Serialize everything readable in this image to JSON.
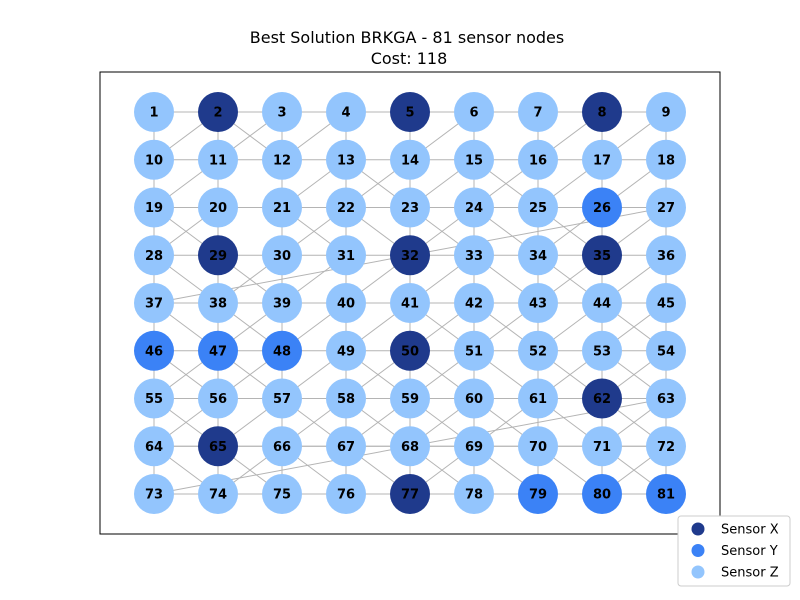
{
  "figure": {
    "title": "Best Solution BRKGA - 81 sensor nodes",
    "subtitle": "Cost: 118"
  },
  "colors": {
    "X": "#1f3a8c",
    "Y": "#3b82f6",
    "Z": "#93c5fd",
    "edge": "#b4b4b4",
    "frame": "#000000"
  },
  "legend": {
    "placement": "bottom-right",
    "items": [
      {
        "type": "X",
        "label": "Sensor X"
      },
      {
        "type": "Y",
        "label": "Sensor Y"
      },
      {
        "type": "Z",
        "label": "Sensor Z"
      }
    ]
  },
  "graph": {
    "rows": 9,
    "cols": 9,
    "nodes": [
      {
        "id": 1,
        "type": "Z"
      },
      {
        "id": 2,
        "type": "X"
      },
      {
        "id": 3,
        "type": "Z"
      },
      {
        "id": 4,
        "type": "Z"
      },
      {
        "id": 5,
        "type": "X"
      },
      {
        "id": 6,
        "type": "Z"
      },
      {
        "id": 7,
        "type": "Z"
      },
      {
        "id": 8,
        "type": "X"
      },
      {
        "id": 9,
        "type": "Z"
      },
      {
        "id": 10,
        "type": "Z"
      },
      {
        "id": 11,
        "type": "Z"
      },
      {
        "id": 12,
        "type": "Z"
      },
      {
        "id": 13,
        "type": "Z"
      },
      {
        "id": 14,
        "type": "Z"
      },
      {
        "id": 15,
        "type": "Z"
      },
      {
        "id": 16,
        "type": "Z"
      },
      {
        "id": 17,
        "type": "Z"
      },
      {
        "id": 18,
        "type": "Z"
      },
      {
        "id": 19,
        "type": "Z"
      },
      {
        "id": 20,
        "type": "Z"
      },
      {
        "id": 21,
        "type": "Z"
      },
      {
        "id": 22,
        "type": "Z"
      },
      {
        "id": 23,
        "type": "Z"
      },
      {
        "id": 24,
        "type": "Z"
      },
      {
        "id": 25,
        "type": "Z"
      },
      {
        "id": 26,
        "type": "Y"
      },
      {
        "id": 27,
        "type": "Z"
      },
      {
        "id": 28,
        "type": "Z"
      },
      {
        "id": 29,
        "type": "X"
      },
      {
        "id": 30,
        "type": "Z"
      },
      {
        "id": 31,
        "type": "Z"
      },
      {
        "id": 32,
        "type": "X"
      },
      {
        "id": 33,
        "type": "Z"
      },
      {
        "id": 34,
        "type": "Z"
      },
      {
        "id": 35,
        "type": "X"
      },
      {
        "id": 36,
        "type": "Z"
      },
      {
        "id": 37,
        "type": "Z"
      },
      {
        "id": 38,
        "type": "Z"
      },
      {
        "id": 39,
        "type": "Z"
      },
      {
        "id": 40,
        "type": "Z"
      },
      {
        "id": 41,
        "type": "Z"
      },
      {
        "id": 42,
        "type": "Z"
      },
      {
        "id": 43,
        "type": "Z"
      },
      {
        "id": 44,
        "type": "Z"
      },
      {
        "id": 45,
        "type": "Z"
      },
      {
        "id": 46,
        "type": "Y"
      },
      {
        "id": 47,
        "type": "Y"
      },
      {
        "id": 48,
        "type": "Y"
      },
      {
        "id": 49,
        "type": "Z"
      },
      {
        "id": 50,
        "type": "X"
      },
      {
        "id": 51,
        "type": "Z"
      },
      {
        "id": 52,
        "type": "Z"
      },
      {
        "id": 53,
        "type": "Z"
      },
      {
        "id": 54,
        "type": "Z"
      },
      {
        "id": 55,
        "type": "Z"
      },
      {
        "id": 56,
        "type": "Z"
      },
      {
        "id": 57,
        "type": "Z"
      },
      {
        "id": 58,
        "type": "Z"
      },
      {
        "id": 59,
        "type": "Z"
      },
      {
        "id": 60,
        "type": "Z"
      },
      {
        "id": 61,
        "type": "Z"
      },
      {
        "id": 62,
        "type": "X"
      },
      {
        "id": 63,
        "type": "Z"
      },
      {
        "id": 64,
        "type": "Z"
      },
      {
        "id": 65,
        "type": "X"
      },
      {
        "id": 66,
        "type": "Z"
      },
      {
        "id": 67,
        "type": "Z"
      },
      {
        "id": 68,
        "type": "Z"
      },
      {
        "id": 69,
        "type": "Z"
      },
      {
        "id": 70,
        "type": "Z"
      },
      {
        "id": 71,
        "type": "Z"
      },
      {
        "id": 72,
        "type": "Z"
      },
      {
        "id": 73,
        "type": "Z"
      },
      {
        "id": 74,
        "type": "Z"
      },
      {
        "id": 75,
        "type": "Z"
      },
      {
        "id": 76,
        "type": "Z"
      },
      {
        "id": 77,
        "type": "X"
      },
      {
        "id": 78,
        "type": "Z"
      },
      {
        "id": 79,
        "type": "Y"
      },
      {
        "id": 80,
        "type": "Y"
      },
      {
        "id": 81,
        "type": "Y"
      }
    ],
    "edges": [
      [
        1,
        2
      ],
      [
        2,
        3
      ],
      [
        3,
        4
      ],
      [
        4,
        5
      ],
      [
        5,
        6
      ],
      [
        6,
        7
      ],
      [
        7,
        8
      ],
      [
        8,
        9
      ],
      [
        10,
        11
      ],
      [
        11,
        12
      ],
      [
        12,
        13
      ],
      [
        13,
        14
      ],
      [
        14,
        15
      ],
      [
        15,
        16
      ],
      [
        16,
        17
      ],
      [
        17,
        18
      ],
      [
        19,
        20
      ],
      [
        20,
        21
      ],
      [
        21,
        22
      ],
      [
        22,
        23
      ],
      [
        23,
        24
      ],
      [
        24,
        25
      ],
      [
        25,
        26
      ],
      [
        26,
        27
      ],
      [
        28,
        29
      ],
      [
        29,
        30
      ],
      [
        30,
        31
      ],
      [
        31,
        32
      ],
      [
        32,
        33
      ],
      [
        33,
        34
      ],
      [
        34,
        35
      ],
      [
        35,
        36
      ],
      [
        37,
        38
      ],
      [
        38,
        39
      ],
      [
        39,
        40
      ],
      [
        40,
        41
      ],
      [
        41,
        42
      ],
      [
        42,
        43
      ],
      [
        43,
        44
      ],
      [
        44,
        45
      ],
      [
        46,
        47
      ],
      [
        47,
        48
      ],
      [
        48,
        49
      ],
      [
        49,
        50
      ],
      [
        50,
        51
      ],
      [
        51,
        52
      ],
      [
        52,
        53
      ],
      [
        53,
        54
      ],
      [
        55,
        56
      ],
      [
        56,
        57
      ],
      [
        57,
        58
      ],
      [
        58,
        59
      ],
      [
        59,
        60
      ],
      [
        60,
        61
      ],
      [
        61,
        62
      ],
      [
        62,
        63
      ],
      [
        64,
        65
      ],
      [
        65,
        66
      ],
      [
        66,
        67
      ],
      [
        67,
        68
      ],
      [
        68,
        69
      ],
      [
        69,
        70
      ],
      [
        70,
        71
      ],
      [
        71,
        72
      ],
      [
        73,
        74
      ],
      [
        74,
        75
      ],
      [
        75,
        76
      ],
      [
        76,
        77
      ],
      [
        77,
        78
      ],
      [
        78,
        79
      ],
      [
        79,
        80
      ],
      [
        80,
        81
      ],
      [
        1,
        10
      ],
      [
        10,
        19
      ],
      [
        19,
        28
      ],
      [
        28,
        37
      ],
      [
        37,
        46
      ],
      [
        46,
        55
      ],
      [
        55,
        64
      ],
      [
        64,
        73
      ],
      [
        2,
        11
      ],
      [
        11,
        20
      ],
      [
        20,
        29
      ],
      [
        29,
        38
      ],
      [
        38,
        47
      ],
      [
        47,
        56
      ],
      [
        56,
        65
      ],
      [
        65,
        74
      ],
      [
        3,
        12
      ],
      [
        12,
        21
      ],
      [
        21,
        30
      ],
      [
        30,
        39
      ],
      [
        39,
        48
      ],
      [
        48,
        57
      ],
      [
        57,
        66
      ],
      [
        66,
        75
      ],
      [
        4,
        13
      ],
      [
        13,
        22
      ],
      [
        22,
        31
      ],
      [
        31,
        40
      ],
      [
        40,
        49
      ],
      [
        49,
        58
      ],
      [
        58,
        67
      ],
      [
        67,
        76
      ],
      [
        5,
        14
      ],
      [
        14,
        23
      ],
      [
        23,
        32
      ],
      [
        32,
        41
      ],
      [
        41,
        50
      ],
      [
        50,
        59
      ],
      [
        59,
        68
      ],
      [
        68,
        77
      ],
      [
        6,
        15
      ],
      [
        15,
        24
      ],
      [
        24,
        33
      ],
      [
        33,
        42
      ],
      [
        42,
        51
      ],
      [
        51,
        60
      ],
      [
        60,
        69
      ],
      [
        69,
        78
      ],
      [
        7,
        16
      ],
      [
        16,
        25
      ],
      [
        25,
        34
      ],
      [
        34,
        43
      ],
      [
        43,
        52
      ],
      [
        52,
        61
      ],
      [
        61,
        70
      ],
      [
        70,
        79
      ],
      [
        8,
        17
      ],
      [
        17,
        26
      ],
      [
        26,
        35
      ],
      [
        35,
        44
      ],
      [
        44,
        53
      ],
      [
        53,
        62
      ],
      [
        62,
        71
      ],
      [
        71,
        80
      ],
      [
        9,
        18
      ],
      [
        18,
        27
      ],
      [
        27,
        36
      ],
      [
        36,
        45
      ],
      [
        45,
        54
      ],
      [
        54,
        63
      ],
      [
        63,
        72
      ],
      [
        72,
        81
      ],
      [
        2,
        10
      ],
      [
        2,
        12
      ],
      [
        3,
        11
      ],
      [
        4,
        12
      ],
      [
        6,
        14
      ],
      [
        8,
        16
      ],
      [
        9,
        17
      ],
      [
        11,
        19
      ],
      [
        13,
        21
      ],
      [
        13,
        23
      ],
      [
        15,
        23
      ],
      [
        17,
        25
      ],
      [
        16,
        24
      ],
      [
        20,
        28
      ],
      [
        22,
        30
      ],
      [
        24,
        32
      ],
      [
        24,
        34
      ],
      [
        27,
        35
      ],
      [
        26,
        34
      ],
      [
        28,
        38
      ],
      [
        30,
        38
      ],
      [
        31,
        39
      ],
      [
        33,
        41
      ],
      [
        35,
        43
      ],
      [
        36,
        44
      ],
      [
        32,
        40
      ],
      [
        37,
        47
      ],
      [
        39,
        47
      ],
      [
        41,
        49
      ],
      [
        42,
        50
      ],
      [
        43,
        51
      ],
      [
        44,
        52
      ],
      [
        45,
        53
      ],
      [
        46,
        56
      ],
      [
        48,
        56
      ],
      [
        49,
        59
      ],
      [
        51,
        59
      ],
      [
        52,
        62
      ],
      [
        53,
        61
      ],
      [
        54,
        62
      ],
      [
        55,
        65
      ],
      [
        56,
        64
      ],
      [
        57,
        67
      ],
      [
        58,
        68
      ],
      [
        60,
        70
      ],
      [
        61,
        71
      ],
      [
        63,
        71
      ],
      [
        64,
        74
      ],
      [
        66,
        74
      ],
      [
        67,
        77
      ],
      [
        69,
        77
      ],
      [
        69,
        79
      ],
      [
        70,
        80
      ],
      [
        72,
        80
      ],
      [
        59,
        69
      ],
      [
        60,
        68
      ],
      [
        14,
        22
      ],
      [
        15,
        25
      ],
      [
        18,
        26
      ],
      [
        19,
        29
      ],
      [
        27,
        37
      ],
      [
        40,
        48
      ],
      [
        42,
        52
      ],
      [
        50,
        60
      ],
      [
        58,
        66
      ],
      [
        63,
        73
      ],
      [
        65,
        75
      ],
      [
        66,
        76
      ],
      [
        68,
        78
      ],
      [
        71,
        81
      ],
      [
        21,
        31
      ],
      [
        22,
        32
      ],
      [
        23,
        33
      ],
      [
        25,
        35
      ],
      [
        29,
        39
      ],
      [
        33,
        43
      ],
      [
        34,
        44
      ],
      [
        38,
        48
      ],
      [
        41,
        51
      ],
      [
        44,
        54
      ],
      [
        47,
        55
      ],
      [
        47,
        57
      ],
      [
        49,
        57
      ],
      [
        50,
        58
      ],
      [
        51,
        61
      ],
      [
        53,
        63
      ],
      [
        55,
        63
      ],
      [
        57,
        65
      ],
      [
        61,
        69
      ],
      [
        62,
        72
      ],
      [
        59,
        67
      ],
      [
        64,
        72
      ]
    ]
  }
}
